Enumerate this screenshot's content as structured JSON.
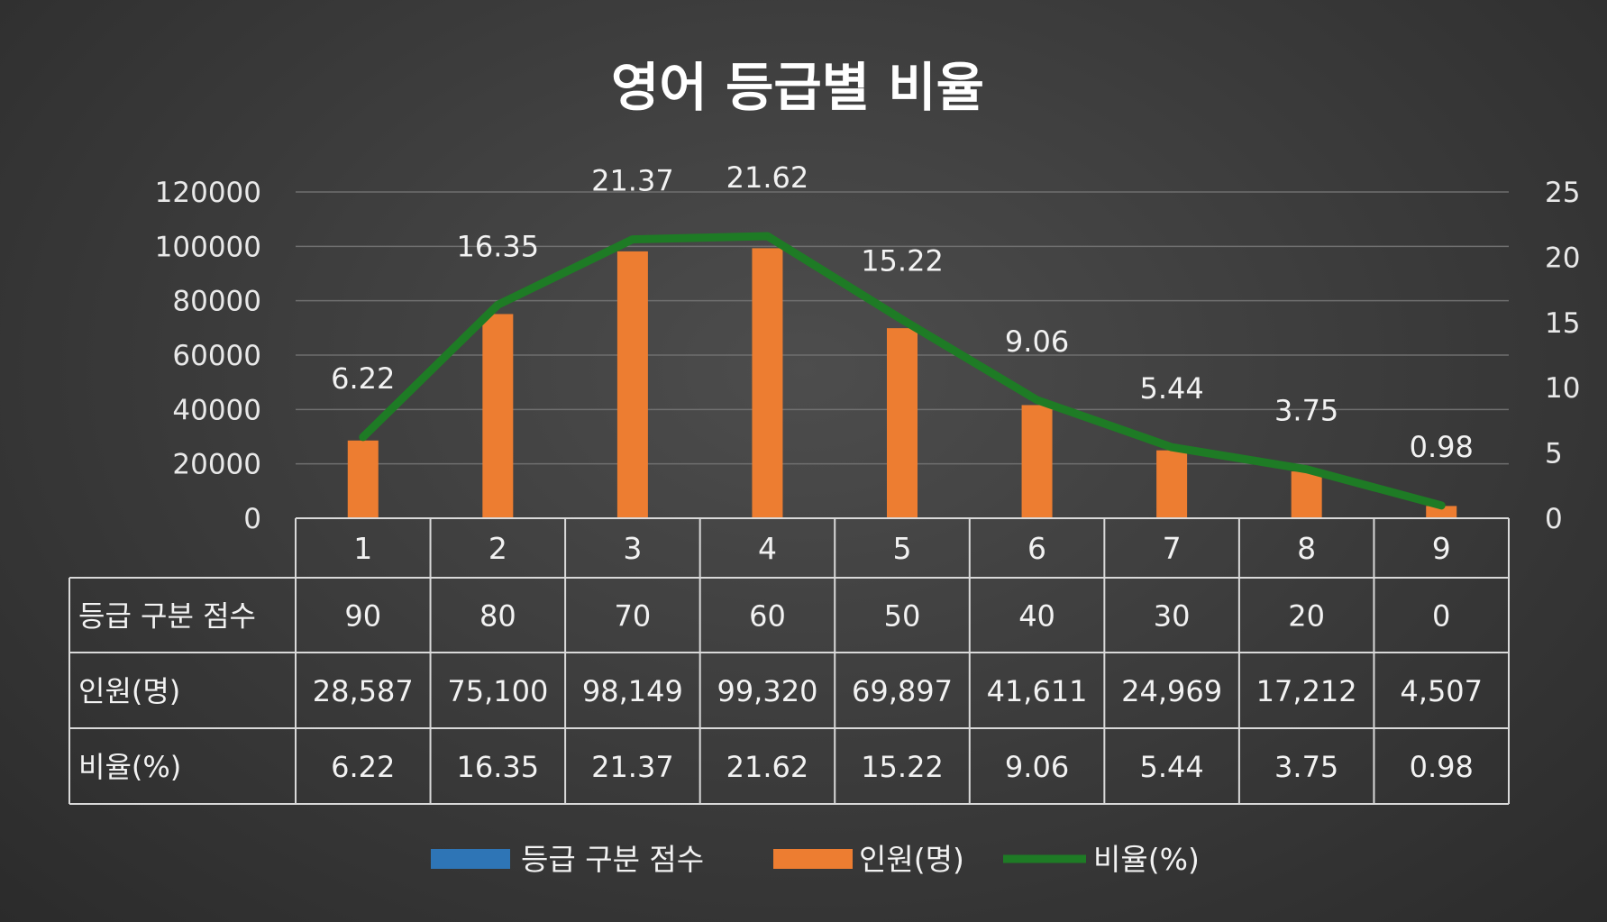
{
  "chart_data": {
    "type": "bar",
    "title": "영어 등급별 비율",
    "categories": [
      "1",
      "2",
      "3",
      "4",
      "5",
      "6",
      "7",
      "8",
      "9"
    ],
    "series": [
      {
        "name": "등급 구분 점수",
        "type": "bar",
        "axis": "left",
        "color": "#2e75b6",
        "values": [
          90,
          80,
          70,
          60,
          50,
          40,
          30,
          20,
          0
        ]
      },
      {
        "name": "인원(명)",
        "type": "bar",
        "axis": "left",
        "color": "#ed7d31",
        "values": [
          28587,
          75100,
          98149,
          99320,
          69897,
          41611,
          24969,
          17212,
          4507
        ]
      },
      {
        "name": "비율(%)",
        "type": "line",
        "axis": "right",
        "color": "#1e7b25",
        "values": [
          6.22,
          16.35,
          21.37,
          21.62,
          15.22,
          9.06,
          5.44,
          3.75,
          0.98
        ]
      }
    ],
    "y_left": {
      "min": 0,
      "max": 120000,
      "ticks": [
        "0",
        "20000",
        "40000",
        "60000",
        "80000",
        "100000",
        "120000"
      ]
    },
    "y_right": {
      "min": 0,
      "max": 25,
      "ticks": [
        "0",
        "5",
        "10",
        "15",
        "20",
        "25"
      ]
    },
    "data_labels": [
      "6.22",
      "16.35",
      "21.37",
      "21.62",
      "15.22",
      "9.06",
      "5.44",
      "3.75",
      "0.98"
    ],
    "table": {
      "rows": [
        {
          "label": "등급 구분 점수",
          "cells": [
            "90",
            "80",
            "70",
            "60",
            "50",
            "40",
            "30",
            "20",
            "0"
          ]
        },
        {
          "label": "인원(명)",
          "cells": [
            "28,587",
            "75,100",
            "98,149",
            "99,320",
            "69,897",
            "41,611",
            "24,969",
            "17,212",
            "4,507"
          ]
        },
        {
          "label": "비율(%)",
          "cells": [
            "6.22",
            "16.35",
            "21.37",
            "21.62",
            "15.22",
            "9.06",
            "5.44",
            "3.75",
            "0.98"
          ]
        }
      ]
    },
    "grid": true,
    "legend_position": "bottom"
  }
}
